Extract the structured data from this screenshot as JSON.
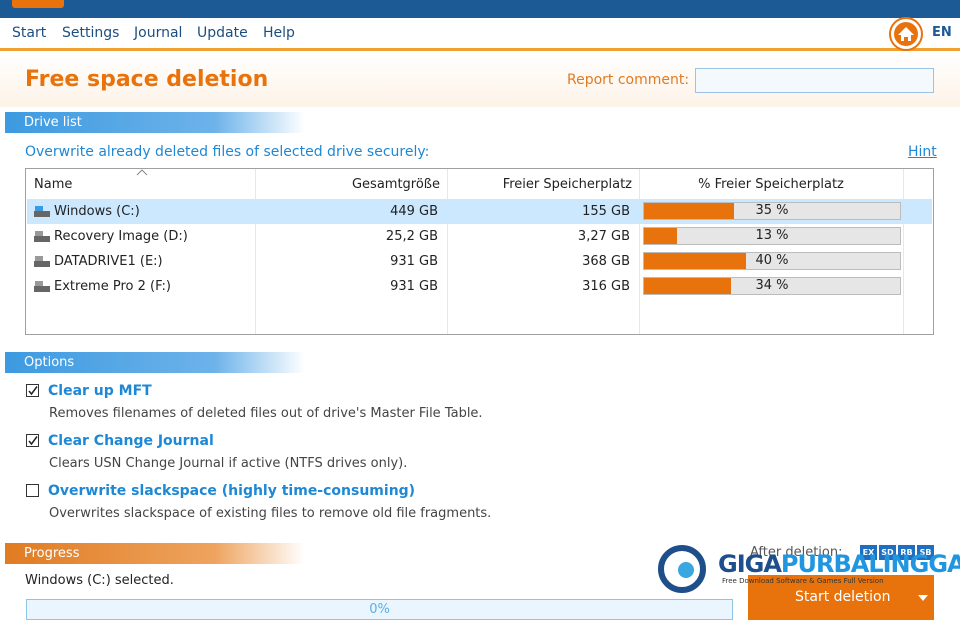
{
  "menu": [
    "Start",
    "Settings",
    "Journal",
    "Update",
    "Help"
  ],
  "language": "EN",
  "title": "Free space deletion",
  "report_comment_label": "Report comment:",
  "drive_list": {
    "heading": "Drive list",
    "instruction": "Overwrite already deleted files of selected drive securely:",
    "hint": "Hint",
    "columns": [
      "Name",
      "Gesamtgröße",
      "Freier Speicherplatz",
      "% Freier Speicherplatz"
    ],
    "rows": [
      {
        "name": "Windows  (C:)",
        "total": "449 GB",
        "free": "155 GB",
        "percent": {
          "value": 35,
          "label": "35 %"
        }
      },
      {
        "name": "Recovery Image (D:)",
        "total": "25,2 GB",
        "free": "3,27 GB",
        "percent": {
          "value": 13,
          "label": "13 %"
        }
      },
      {
        "name": "DATADRIVE1 (E:)",
        "total": "931 GB",
        "free": "368 GB",
        "percent": {
          "value": 40,
          "label": "40 %"
        }
      },
      {
        "name": "Extreme Pro 2 (F:)",
        "total": "931 GB",
        "free": "316 GB",
        "percent": {
          "value": 34,
          "label": "34 %"
        }
      }
    ]
  },
  "options": {
    "heading": "Options",
    "items": [
      {
        "label": "Clear up MFT",
        "description": "Removes filenames of deleted files out of drive's Master File Table.",
        "checked": true
      },
      {
        "label": "Clear Change Journal",
        "description": "Clears USN Change Journal if active (NTFS drives only).",
        "checked": true
      },
      {
        "label": "Overwrite slackspace (highly time-consuming)",
        "description": "Overwrites slackspace of existing files to remove old file fragments.",
        "checked": false
      }
    ]
  },
  "progress": {
    "heading": "Progress",
    "status": "Windows  (C:) selected.",
    "value": {
      "value": 0,
      "label": "0%"
    }
  },
  "after_deletion": {
    "label": "After deletion:",
    "badges": [
      "EX",
      "SD",
      "RB",
      "SB"
    ]
  },
  "start_button": "Start deletion",
  "watermark": {
    "brand_a": "GIGA",
    "brand_b": "PURBALINGGA",
    "tagline": "Free Download Software & Games Full Version"
  }
}
